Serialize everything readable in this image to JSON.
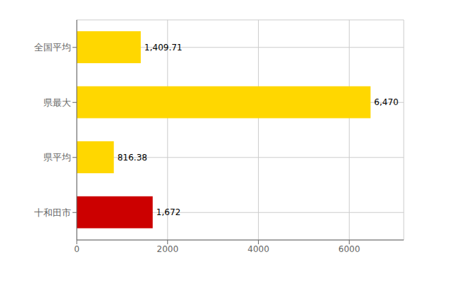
{
  "chart_data": {
    "type": "bar",
    "orientation": "horizontal",
    "categories": [
      "十和田市",
      "県平均",
      "県最大",
      "全国平均"
    ],
    "values": [
      1672,
      816.38,
      6470,
      1409.71
    ],
    "value_labels": [
      "1,672",
      "816.38",
      "6,470",
      "1,409.71"
    ],
    "colors": [
      "#CC0000",
      "#FFD700",
      "#FFD700",
      "#FFD700"
    ],
    "xlim": [
      0,
      7200
    ],
    "xticks": [
      0,
      2000,
      4000,
      6000
    ],
    "grid": true,
    "data_labels": true
  }
}
